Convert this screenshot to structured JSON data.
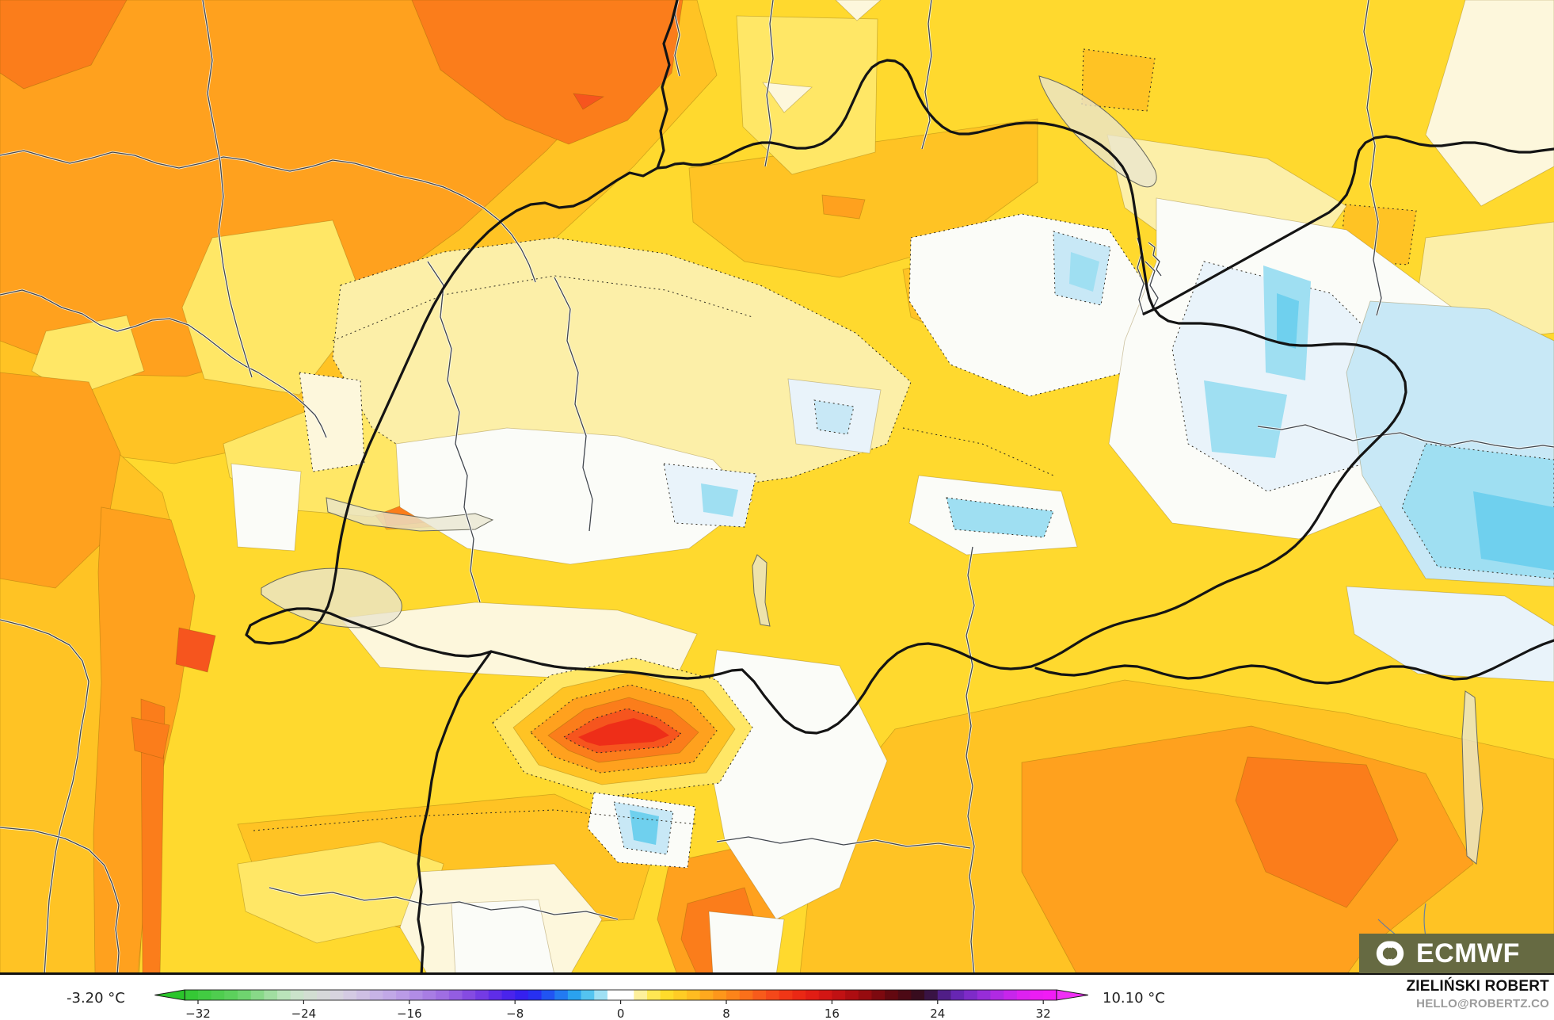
{
  "colorbar": {
    "unit": "°C",
    "min_label": "-3.20 °C",
    "max_label": "10.10 °C",
    "ticks": [
      "−32",
      "−24",
      "−16",
      "−8",
      "0",
      "8",
      "16",
      "24",
      "32"
    ],
    "tick_values": [
      -32,
      -24,
      -16,
      -8,
      0,
      8,
      16,
      24,
      32
    ],
    "level_min": -33,
    "level_max": 33,
    "level_step": 1,
    "under_arrow_color": "#2BC52B",
    "over_arrow_color": "#F030F5",
    "gradient_stops": [
      {
        "t": -33,
        "color": "#2EC72E"
      },
      {
        "t": -29,
        "color": "#63D163"
      },
      {
        "t": -25,
        "color": "#C6E6C6"
      },
      {
        "t": -23,
        "color": "#D6DBD6"
      },
      {
        "t": -21,
        "color": "#D7D0E2"
      },
      {
        "t": -17,
        "color": "#BEA2E8"
      },
      {
        "t": -13,
        "color": "#9A66E2"
      },
      {
        "t": -11,
        "color": "#7E42E2"
      },
      {
        "t": -9,
        "color": "#5526EA"
      },
      {
        "t": -7,
        "color": "#2A1EF0"
      },
      {
        "t": -5,
        "color": "#1E66F2"
      },
      {
        "t": -3,
        "color": "#2EB6EE"
      },
      {
        "t": -1.5,
        "color": "#9FE0F4"
      },
      {
        "t": -1,
        "color": "#E8F6FB"
      },
      {
        "t": -0.9,
        "color": "#FFFFFF"
      },
      {
        "t": 0.9,
        "color": "#FFFFFF"
      },
      {
        "t": 1,
        "color": "#FDF4C0"
      },
      {
        "t": 3,
        "color": "#FFE22E"
      },
      {
        "t": 5,
        "color": "#FFC522"
      },
      {
        "t": 7,
        "color": "#FFA01C"
      },
      {
        "t": 9,
        "color": "#FB7A19"
      },
      {
        "t": 11,
        "color": "#F6511C"
      },
      {
        "t": 13,
        "color": "#EE2D14"
      },
      {
        "t": 15,
        "color": "#DC1814"
      },
      {
        "t": 17,
        "color": "#B80E12"
      },
      {
        "t": 19,
        "color": "#8A0A0E"
      },
      {
        "t": 21,
        "color": "#560710"
      },
      {
        "t": 23,
        "color": "#2E0E22"
      },
      {
        "t": 25,
        "color": "#5B23A8"
      },
      {
        "t": 27,
        "color": "#8A2ED3"
      },
      {
        "t": 29,
        "color": "#BC28E8"
      },
      {
        "t": 31,
        "color": "#E81EF2"
      },
      {
        "t": 33,
        "color": "#F41BF6"
      }
    ]
  },
  "branding": {
    "logo_text": "ECMWF",
    "logo_icon": "ecmwf-interlocked-c-globe-icon"
  },
  "attribution": {
    "name": "ZIELIŃSKI ROBERT",
    "email": "HELLO@ROBERTZ.CO"
  },
  "palette": {
    "map_yellow": "#FFD92E",
    "map_light_yellow": "#FFE766",
    "map_gold": "#FFC324",
    "map_orange": "#FFA11E",
    "map_deep_orange": "#FB7D1B",
    "map_red_orange": "#F6551E",
    "map_red": "#EE2E18",
    "map_pale_yellow": "#FCEFA8",
    "map_cream": "#FDF7DC",
    "map_white": "#FBFCF8",
    "map_pale_blue": "#E9F3FA",
    "map_light_blue": "#C8E8F6",
    "map_cyan": "#9FDFF2",
    "map_deep_cyan": "#6FD0EE",
    "lake": "#E9E6CF",
    "border_thin": "#41464C",
    "border_bold": "#141414",
    "contour_dotted": "#2E2A20",
    "logo_bg": "#666A42",
    "footer_bg": "#FFFFFF"
  }
}
